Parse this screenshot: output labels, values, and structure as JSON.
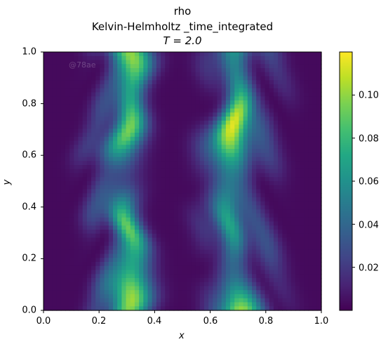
{
  "chart_data": {
    "type": "heatmap",
    "title_lines": [
      "rho",
      "Kelvin-Helmholtz _time_integrated",
      "T = 2.0"
    ],
    "time_label": "T = 2.0",
    "xlabel": "x",
    "ylabel": "y",
    "xlim": [
      0.0,
      1.0
    ],
    "ylim": [
      0.0,
      1.0
    ],
    "xticks": [
      "0.0",
      "0.2",
      "0.4",
      "0.6",
      "0.8",
      "1.0"
    ],
    "yticks": [
      "0.0",
      "0.2",
      "0.4",
      "0.6",
      "0.8",
      "1.0"
    ],
    "colorbar": {
      "colormap": "viridis",
      "range": [
        0.0,
        0.12
      ],
      "ticks": [
        "0.02",
        "0.04",
        "0.06",
        "0.08",
        "0.10"
      ],
      "tick_values": [
        0.02,
        0.04,
        0.06,
        0.08,
        0.1
      ]
    },
    "field_description_bands": [
      {
        "x_center": 0.3,
        "peak_value": 0.115
      },
      {
        "x_center": 0.68,
        "peak_value": 0.115
      }
    ],
    "watermark": "@78ae"
  }
}
